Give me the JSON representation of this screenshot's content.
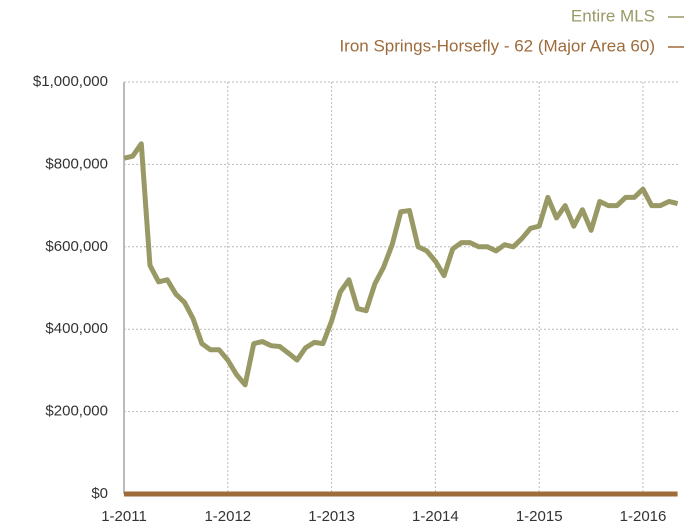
{
  "chart_data": {
    "type": "line",
    "categories": [
      "1-2011",
      null,
      null,
      null,
      null,
      null,
      null,
      null,
      null,
      null,
      null,
      null,
      "1-2012",
      null,
      null,
      null,
      null,
      null,
      null,
      null,
      null,
      null,
      null,
      null,
      "1-2013",
      null,
      null,
      null,
      null,
      null,
      null,
      null,
      null,
      null,
      null,
      null,
      "1-2014",
      null,
      null,
      null,
      null,
      null,
      null,
      null,
      null,
      null,
      null,
      null,
      "1-2015",
      null,
      null,
      null,
      null,
      null,
      null,
      null,
      null,
      null,
      null,
      null,
      "1-2016",
      null,
      null,
      null,
      null
    ],
    "series": [
      {
        "name": "Entire MLS",
        "color": "#999966",
        "values": [
          815000,
          820000,
          850000,
          555000,
          515000,
          520000,
          485000,
          465000,
          425000,
          365000,
          350000,
          350000,
          325000,
          290000,
          265000,
          365000,
          370000,
          360000,
          358000,
          342000,
          325000,
          355000,
          368000,
          365000,
          420000,
          490000,
          520000,
          450000,
          445000,
          510000,
          550000,
          605000,
          685000,
          688000,
          600000,
          590000,
          565000,
          530000,
          595000,
          610000,
          610000,
          600000,
          600000,
          590000,
          605000,
          600000,
          620000,
          645000,
          650000,
          720000,
          670000,
          700000,
          650000,
          690000,
          640000,
          710000,
          700000,
          700000,
          720000,
          720000,
          740000,
          700000,
          700000,
          710000,
          705000
        ]
      },
      {
        "name": "Iron Springs-Horsefly - 62  (Major Area 60)",
        "color": "#9e6b3b",
        "values": [
          0,
          0,
          0,
          0,
          0,
          0,
          0,
          0,
          0,
          0,
          0,
          0,
          0,
          0,
          0,
          0,
          0,
          0,
          0,
          0,
          0,
          0,
          0,
          0,
          0,
          0,
          0,
          0,
          0,
          0,
          0,
          0,
          0,
          0,
          0,
          0,
          0,
          0,
          0,
          0,
          0,
          0,
          0,
          0,
          0,
          0,
          0,
          0,
          0,
          0,
          0,
          0,
          0,
          0,
          0,
          0,
          0,
          0,
          0,
          0,
          0,
          0,
          0,
          0,
          0
        ]
      }
    ],
    "ylim": [
      0,
      1000000
    ],
    "yticks": [
      {
        "value": 0,
        "label": "$0"
      },
      {
        "value": 200000,
        "label": "$200,000"
      },
      {
        "value": 400000,
        "label": "$400,000"
      },
      {
        "value": 600000,
        "label": "$600,000"
      },
      {
        "value": 800000,
        "label": "$800,000"
      },
      {
        "value": 1000000,
        "label": "$1,000,000"
      }
    ],
    "grid": true
  }
}
